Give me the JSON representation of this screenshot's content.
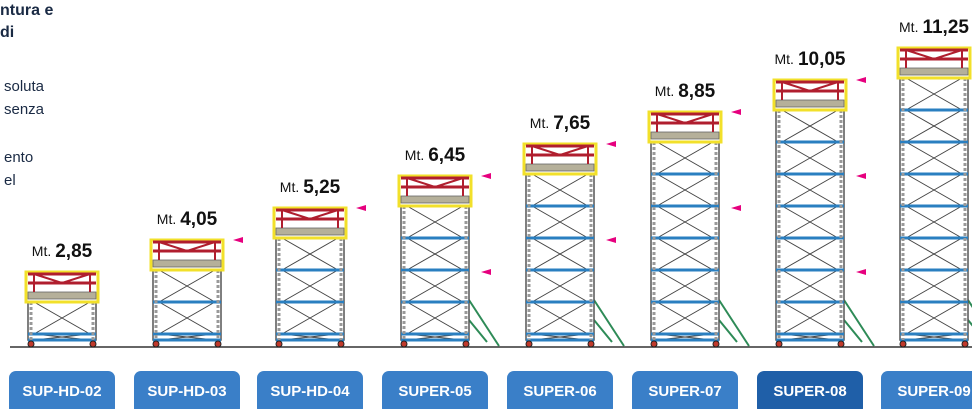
{
  "intro": {
    "title_lines": [
      "ntura e",
      "di"
    ],
    "body_lines": [
      "soluta",
      "senza",
      "ento",
      "el"
    ]
  },
  "unit": "Mt.",
  "towers": [
    {
      "height": "2,85",
      "model": "SUP-HD-02"
    },
    {
      "height": "4,05",
      "model": "SUP-HD-03"
    },
    {
      "height": "5,25",
      "model": "SUP-HD-04"
    },
    {
      "height": "6,45",
      "model": "SUPER-05"
    },
    {
      "height": "7,65",
      "model": "SUPER-06"
    },
    {
      "height": "8,85",
      "model": "SUPER-07"
    },
    {
      "height": "10,05",
      "model": "SUPER-08"
    },
    {
      "height": "11,25",
      "model": "SUPER-09"
    }
  ]
}
